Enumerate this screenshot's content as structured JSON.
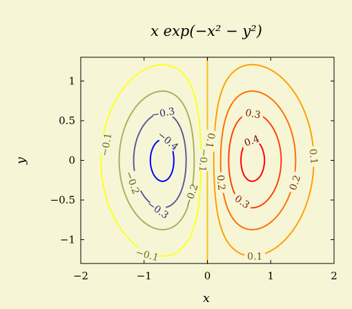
{
  "chart_data": {
    "type": "contour",
    "title": "x exp(−x² − y²)",
    "xlabel": "x",
    "ylabel": "y",
    "xlim": [
      -2,
      2
    ],
    "ylim": [
      -1.3,
      1.3
    ],
    "x_ticks": [
      -2,
      -1,
      0,
      1,
      2
    ],
    "y_ticks": [
      -1,
      -0.5,
      0,
      0.5,
      1
    ],
    "x_tick_labels": [
      "−2",
      "−1",
      "0",
      "1",
      "2"
    ],
    "y_tick_labels": [
      "−1",
      "−0.5",
      "0",
      "0.5",
      "1"
    ],
    "grid": false,
    "levels": [
      {
        "value": -0.4,
        "label": "−0.4",
        "color": "#0000ff"
      },
      {
        "value": -0.3,
        "label": "−0.3",
        "color": "#5a5a9f"
      },
      {
        "value": -0.2,
        "label": "−0.2",
        "color": "#aeae5e"
      },
      {
        "value": -0.1,
        "label": "−0.1",
        "color": "#ffff1f"
      },
      {
        "value": 0,
        "label": "0",
        "color": "#f5c01a"
      },
      {
        "value": 0.1,
        "label": "0.1",
        "color": "#ff9f00"
      },
      {
        "value": 0.2,
        "label": "0.2",
        "color": "#ff7000"
      },
      {
        "value": 0.3,
        "label": "0.3",
        "color": "#ff4000"
      },
      {
        "value": 0.4,
        "label": "0.4",
        "color": "#ff0000"
      }
    ],
    "contour_labels": [
      {
        "text": "−0.3",
        "x": -0.7,
        "y": 0.6,
        "angle": -10
      },
      {
        "text": "−0.4",
        "x": -0.62,
        "y": 0.25,
        "angle": 40
      },
      {
        "text": "−0.1",
        "x": -1.6,
        "y": 0.2,
        "angle": -80
      },
      {
        "text": "−0.2",
        "x": -1.18,
        "y": -0.28,
        "angle": 70
      },
      {
        "text": "−0.3",
        "x": -0.78,
        "y": -0.62,
        "angle": 35
      },
      {
        "text": "−0.2",
        "x": -0.26,
        "y": -0.44,
        "angle": -70
      },
      {
        "text": "−0.1",
        "x": -0.95,
        "y": -1.19,
        "angle": 15
      },
      {
        "text": "0.3",
        "x": 0.72,
        "y": 0.59,
        "angle": 10
      },
      {
        "text": "0.4",
        "x": 0.7,
        "y": 0.25,
        "angle": -20
      },
      {
        "text": "0.1",
        "x": 1.68,
        "y": 0.05,
        "angle": 85
      },
      {
        "text": "0.2",
        "x": 1.38,
        "y": -0.28,
        "angle": -70
      },
      {
        "text": "0.3",
        "x": 0.55,
        "y": -0.52,
        "angle": 35
      },
      {
        "text": "0.2",
        "x": 0.22,
        "y": -0.28,
        "angle": 85
      },
      {
        "text": "0.1",
        "x": 0.75,
        "y": -1.21,
        "angle": 0
      },
      {
        "text": "0.1",
        "x": 0.05,
        "y": 0.25,
        "angle": 100
      },
      {
        "text": "−0.1",
        "x": -0.06,
        "y": 0.0,
        "angle": 95
      }
    ]
  }
}
